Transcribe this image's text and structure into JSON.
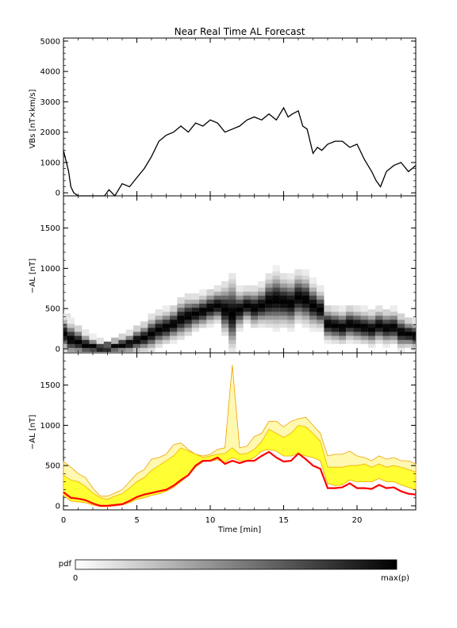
{
  "title": "Near Real Time AL Forecast",
  "colorbar": {
    "label": "pdf",
    "min_label": "0",
    "max_label": "max(p)"
  },
  "chart_data": [
    {
      "type": "line",
      "ylabel": "VBs [nT×km/s]",
      "xlabel": "",
      "xlim": [
        0,
        24
      ],
      "ylim": [
        -100,
        5100
      ],
      "yticks": [
        0,
        1000,
        2000,
        3000,
        4000,
        5000
      ],
      "xticks": [
        0,
        5,
        10,
        15,
        20
      ],
      "color": "#000000",
      "series": [
        {
          "x": [
            0,
            0.2,
            0.35,
            0.5,
            0.7,
            1.0,
            2.0,
            2.8,
            3.1,
            3.5,
            4.0,
            4.5,
            5.0,
            5.5,
            6.0,
            6.5,
            7.0,
            7.5,
            8.0,
            8.5,
            9.0,
            9.5,
            10.0,
            10.5,
            11.0,
            11.5,
            12.0,
            12.5,
            13.0,
            13.5,
            14.0,
            14.5,
            15.0,
            15.3,
            15.6,
            16.0,
            16.3,
            16.6,
            17.0,
            17.3,
            17.6,
            18.0,
            18.5,
            19.0,
            19.5,
            20.0,
            20.5,
            21.0,
            21.3,
            21.6,
            22.0,
            22.5,
            23.0,
            23.5,
            24.0
          ],
          "values": [
            1400,
            1000,
            700,
            200,
            0,
            -100,
            -100,
            -100,
            100,
            -100,
            300,
            200,
            500,
            800,
            1200,
            1700,
            1900,
            2000,
            2200,
            2000,
            2300,
            2200,
            2400,
            2300,
            2000,
            2100,
            2200,
            2400,
            2500,
            2400,
            2600,
            2400,
            2800,
            2500,
            2600,
            2700,
            2200,
            2100,
            1300,
            1500,
            1400,
            1600,
            1700,
            1700,
            1500,
            1600,
            1100,
            700,
            400,
            200,
            700,
            900,
            1000,
            700,
            900
          ]
        }
      ]
    },
    {
      "type": "heatmap",
      "ylabel": "−AL [nT]",
      "xlabel": "",
      "xlim": [
        0,
        24
      ],
      "ylim": [
        -50,
        1900
      ],
      "yticks": [
        0,
        500,
        1000,
        1500
      ],
      "xticks": [
        0,
        5,
        10,
        15,
        20
      ],
      "center_x": [
        0,
        0.5,
        1,
        1.5,
        2,
        2.5,
        3,
        3.5,
        4,
        4.5,
        5,
        5.5,
        6,
        6.5,
        7,
        7.5,
        8,
        8.5,
        9,
        9.5,
        10,
        10.5,
        11,
        11.5,
        12,
        12.5,
        13,
        13.5,
        14,
        14.5,
        15,
        15.5,
        16,
        16.5,
        17,
        17.5,
        18,
        18.5,
        19,
        19.5,
        20,
        20.5,
        21,
        21.5,
        22,
        22.5,
        23,
        23.5,
        24
      ],
      "center_y": [
        200,
        130,
        100,
        60,
        40,
        20,
        20,
        40,
        60,
        80,
        120,
        150,
        200,
        250,
        280,
        320,
        380,
        420,
        450,
        480,
        520,
        550,
        500,
        450,
        500,
        550,
        520,
        550,
        600,
        620,
        600,
        580,
        650,
        620,
        550,
        500,
        320,
        300,
        280,
        320,
        300,
        280,
        260,
        300,
        270,
        280,
        220,
        200,
        180
      ],
      "spread": [
        300,
        300,
        250,
        200,
        150,
        120,
        100,
        120,
        150,
        180,
        220,
        250,
        300,
        300,
        300,
        300,
        350,
        350,
        300,
        300,
        300,
        300,
        450,
        650,
        350,
        300,
        350,
        350,
        450,
        500,
        450,
        450,
        450,
        450,
        400,
        350,
        300,
        300,
        300,
        300,
        300,
        300,
        300,
        300,
        300,
        300,
        300,
        250,
        250
      ]
    },
    {
      "type": "area",
      "ylabel": "−AL [nT]",
      "xlabel": "Time [min]",
      "xlim": [
        0,
        24
      ],
      "ylim": [
        -50,
        1900
      ],
      "yticks": [
        0,
        500,
        1000,
        1500
      ],
      "xticks": [
        0,
        5,
        10,
        15,
        20
      ],
      "x": [
        0,
        0.5,
        1,
        1.5,
        2,
        2.5,
        3,
        3.5,
        4,
        4.5,
        5,
        5.5,
        6,
        6.5,
        7,
        7.5,
        8,
        8.5,
        9,
        9.5,
        10,
        10.5,
        11,
        11.5,
        12,
        12.5,
        13,
        13.5,
        14,
        14.5,
        15,
        15.5,
        16,
        16.5,
        17,
        17.5,
        18,
        18.5,
        19,
        19.5,
        20,
        20.5,
        21,
        21.5,
        22,
        22.5,
        23,
        23.5,
        24
      ],
      "series": [
        {
          "name": "",
          "color": "#ff0000",
          "values": [
            170,
            100,
            90,
            70,
            30,
            0,
            0,
            10,
            20,
            60,
            110,
            140,
            160,
            180,
            200,
            250,
            320,
            380,
            500,
            560,
            560,
            600,
            520,
            560,
            530,
            560,
            560,
            620,
            670,
            600,
            550,
            560,
            650,
            580,
            500,
            460,
            220,
            220,
            230,
            280,
            220,
            220,
            210,
            260,
            220,
            230,
            180,
            150,
            140
          ]
        }
      ],
      "band_lower": [
        130,
        60,
        50,
        40,
        10,
        -10,
        -10,
        0,
        10,
        40,
        80,
        100,
        130,
        150,
        180,
        230,
        300,
        380,
        480,
        550,
        560,
        570,
        540,
        600,
        560,
        560,
        600,
        680,
        700,
        680,
        620,
        620,
        650,
        620,
        600,
        560,
        280,
        250,
        260,
        320,
        300,
        300,
        300,
        340,
        300,
        300,
        260,
        230,
        200
      ],
      "band_upper": [
        380,
        320,
        300,
        240,
        160,
        100,
        80,
        120,
        150,
        220,
        300,
        350,
        440,
        500,
        560,
        620,
        720,
        680,
        640,
        600,
        620,
        640,
        650,
        720,
        640,
        650,
        700,
        800,
        950,
        900,
        850,
        900,
        1000,
        980,
        900,
        800,
        480,
        480,
        480,
        500,
        500,
        520,
        480,
        520,
        480,
        500,
        480,
        450,
        420
      ],
      "envelope_upper": [
        550,
        480,
        400,
        350,
        220,
        120,
        120,
        160,
        200,
        300,
        400,
        450,
        580,
        600,
        640,
        760,
        780,
        700,
        640,
        620,
        640,
        700,
        720,
        1750,
        720,
        740,
        860,
        900,
        1050,
        1050,
        980,
        1050,
        1080,
        1100,
        1000,
        900,
        620,
        640,
        640,
        680,
        620,
        600,
        560,
        620,
        580,
        600,
        560,
        560,
        520
      ]
    }
  ]
}
